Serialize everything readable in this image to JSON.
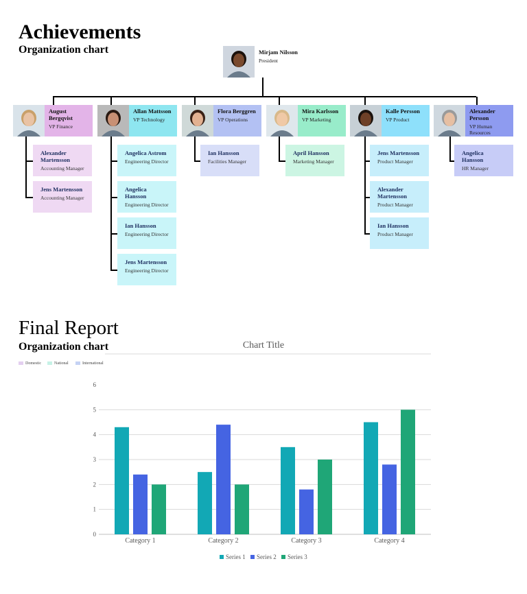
{
  "section1": {
    "title": "Achievements",
    "subtitle": "Organization chart"
  },
  "org": {
    "top": {
      "name": "Mirjam Nilsson",
      "role": "President",
      "bg": "#f0f0f0"
    },
    "vps": [
      {
        "name": "August Bergqvist",
        "role": "VP Finance",
        "bg": "#e3b4e8",
        "sub_bg": "#efd9f3",
        "reports": [
          {
            "name": "Alexander Martensson",
            "role": "Accounting Manager"
          },
          {
            "name": "Jens Martensson",
            "role": "Accounting Manager"
          }
        ]
      },
      {
        "name": "Allan Mattsson",
        "role": "VP Technology",
        "bg": "#8ee6f0",
        "sub_bg": "#c9f5f9",
        "reports": [
          {
            "name": "Angelica Astrom",
            "role": "Engineering Director"
          },
          {
            "name": "Angelica Hansson",
            "role": "Engineering Director"
          },
          {
            "name": "Ian Hansson",
            "role": "Engineering Director"
          },
          {
            "name": "Jens Martensson",
            "role": "Engineering Director"
          }
        ]
      },
      {
        "name": "Flora Berggren",
        "role": "VP Operations",
        "bg": "#b3c1f3",
        "sub_bg": "#d8def8",
        "reports": [
          {
            "name": "Ian Hansson",
            "role": "Facilities Manager"
          }
        ]
      },
      {
        "name": "Mira Karlsson",
        "role": "VP Marketing",
        "bg": "#98ecca",
        "sub_bg": "#ccf5e3",
        "reports": [
          {
            "name": "April Hansson",
            "role": "Marketing Manager"
          }
        ]
      },
      {
        "name": "Kalle Persson",
        "role": "VP Product",
        "bg": "#8ee0fb",
        "sub_bg": "#c7eefb",
        "reports": [
          {
            "name": "Jens Martensson",
            "role": "Product Manager"
          },
          {
            "name": "Alexander Martensson",
            "role": "Product Manager"
          },
          {
            "name": "Ian Hansson",
            "role": "Product Manager"
          }
        ]
      },
      {
        "name": "Alexander Persson",
        "role": "VP Human Resources",
        "bg": "#8e9bf0",
        "sub_bg": "#c7ccf7",
        "reports": [
          {
            "name": "Angelica Hansson",
            "role": "HR Manager"
          }
        ]
      }
    ]
  },
  "section2": {
    "title": "Final Report",
    "subtitle": "Organization chart",
    "legend": [
      {
        "label": "Domestic",
        "color": "#e3cff0"
      },
      {
        "label": "National",
        "color": "#c6f2e6"
      },
      {
        "label": "International",
        "color": "#c5d2f4"
      }
    ]
  },
  "chart_data": {
    "type": "bar",
    "title": "Chart Title",
    "categories": [
      "Category 1",
      "Category 2",
      "Category 3",
      "Category 4"
    ],
    "series": [
      {
        "name": "Series 1",
        "values": [
          4.3,
          2.5,
          3.5,
          4.5
        ],
        "color": "#12a8b5"
      },
      {
        "name": "Series 2",
        "values": [
          2.4,
          4.4,
          1.8,
          2.8
        ],
        "color": "#4564e2"
      },
      {
        "name": "Series 3",
        "values": [
          2.0,
          2.0,
          3.0,
          5.0
        ],
        "color": "#1fa677"
      }
    ],
    "ylim": [
      0,
      6
    ],
    "yticks": [
      "0",
      "1",
      "2",
      "3",
      "4",
      "5",
      "6"
    ],
    "grid": true,
    "legend_position": "bottom"
  }
}
